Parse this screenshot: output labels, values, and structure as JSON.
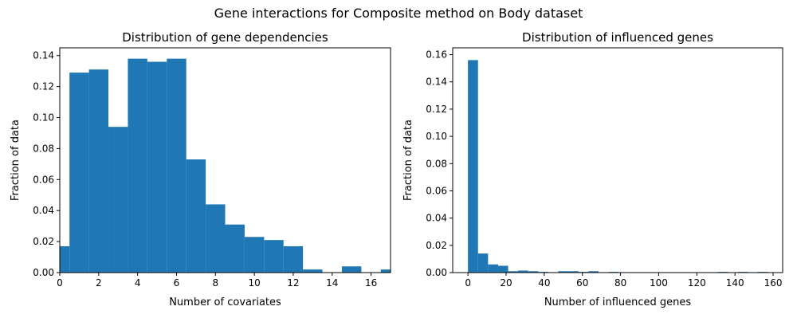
{
  "figure": {
    "suptitle": "Gene interactions for Composite method on Body dataset"
  },
  "chart_data": [
    {
      "type": "bar",
      "title": "Distribution of gene dependencies",
      "xlabel": "Number of covariates",
      "ylabel": "Fraction of data",
      "xlim": [
        0,
        17
      ],
      "ylim": [
        0,
        0.145
      ],
      "xticks": [
        0,
        2,
        4,
        6,
        8,
        10,
        12,
        14,
        16
      ],
      "yticks": [
        0.0,
        0.02,
        0.04,
        0.06,
        0.08,
        0.1,
        0.12,
        0.14
      ],
      "ytick_labels": [
        "0.00",
        "0.02",
        "0.04",
        "0.06",
        "0.08",
        "0.10",
        "0.12",
        "0.14"
      ],
      "grid": false,
      "color": "#1f77b4",
      "bins": [
        {
          "x0": 0.0,
          "x1": 0.5,
          "value": 0.017
        },
        {
          "x0": 0.5,
          "x1": 1.5,
          "value": 0.129
        },
        {
          "x0": 1.5,
          "x1": 2.5,
          "value": 0.131
        },
        {
          "x0": 2.5,
          "x1": 3.5,
          "value": 0.094
        },
        {
          "x0": 3.5,
          "x1": 4.5,
          "value": 0.138
        },
        {
          "x0": 4.5,
          "x1": 5.5,
          "value": 0.136
        },
        {
          "x0": 5.5,
          "x1": 6.5,
          "value": 0.138
        },
        {
          "x0": 6.5,
          "x1": 7.5,
          "value": 0.073
        },
        {
          "x0": 7.5,
          "x1": 8.5,
          "value": 0.044
        },
        {
          "x0": 8.5,
          "x1": 9.5,
          "value": 0.031
        },
        {
          "x0": 9.5,
          "x1": 10.5,
          "value": 0.023
        },
        {
          "x0": 10.5,
          "x1": 11.5,
          "value": 0.021
        },
        {
          "x0": 11.5,
          "x1": 12.5,
          "value": 0.017
        },
        {
          "x0": 12.5,
          "x1": 13.5,
          "value": 0.002
        },
        {
          "x0": 13.5,
          "x1": 14.5,
          "value": 0.0
        },
        {
          "x0": 14.5,
          "x1": 15.5,
          "value": 0.004
        },
        {
          "x0": 15.5,
          "x1": 16.5,
          "value": 0.0
        },
        {
          "x0": 16.5,
          "x1": 17.0,
          "value": 0.002
        }
      ]
    },
    {
      "type": "bar",
      "title": "Distribution of influenced genes",
      "xlabel": "Number of influenced genes",
      "ylabel": "Fraction of data",
      "xlim": [
        -8,
        165
      ],
      "ylim": [
        0,
        0.165
      ],
      "xticks": [
        0,
        20,
        40,
        60,
        80,
        100,
        120,
        140,
        160
      ],
      "yticks": [
        0.0,
        0.02,
        0.04,
        0.06,
        0.08,
        0.1,
        0.12,
        0.14,
        0.16
      ],
      "ytick_labels": [
        "0.00",
        "0.02",
        "0.04",
        "0.06",
        "0.08",
        "0.10",
        "0.12",
        "0.14",
        "0.16"
      ],
      "grid": false,
      "color": "#1f77b4",
      "bins": [
        {
          "x0": 0.0,
          "x1": 5.27,
          "value": 0.156
        },
        {
          "x0": 5.27,
          "x1": 10.53,
          "value": 0.014
        },
        {
          "x0": 10.53,
          "x1": 15.8,
          "value": 0.006
        },
        {
          "x0": 15.8,
          "x1": 21.07,
          "value": 0.005
        },
        {
          "x0": 21.07,
          "x1": 26.33,
          "value": 0.001
        },
        {
          "x0": 26.33,
          "x1": 31.6,
          "value": 0.0015
        },
        {
          "x0": 31.6,
          "x1": 36.87,
          "value": 0.001
        },
        {
          "x0": 36.87,
          "x1": 42.13,
          "value": 0.0005
        },
        {
          "x0": 42.13,
          "x1": 47.4,
          "value": 0.0003
        },
        {
          "x0": 47.4,
          "x1": 52.67,
          "value": 0.001
        },
        {
          "x0": 52.67,
          "x1": 57.93,
          "value": 0.001
        },
        {
          "x0": 57.93,
          "x1": 63.2,
          "value": 0.0005
        },
        {
          "x0": 63.2,
          "x1": 68.47,
          "value": 0.001
        },
        {
          "x0": 68.47,
          "x1": 73.73,
          "value": 0.0
        },
        {
          "x0": 73.73,
          "x1": 79.0,
          "value": 0.0005
        },
        {
          "x0": 131.0,
          "x1": 136.3,
          "value": 0.0005
        },
        {
          "x0": 141.5,
          "x1": 146.8,
          "value": 0.0005
        },
        {
          "x0": 152.0,
          "x1": 157.3,
          "value": 0.0005
        }
      ]
    }
  ]
}
